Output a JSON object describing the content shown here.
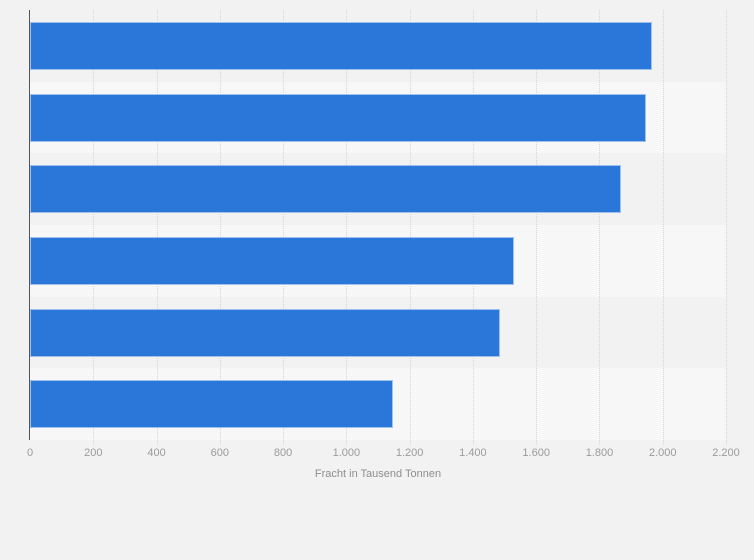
{
  "chart_data": {
    "type": "bar",
    "orientation": "horizontal",
    "title": "",
    "xlabel": "Fracht in Tausend Tonnen",
    "ylabel": "",
    "values": [
      1965,
      1948,
      1868,
      1530,
      1486,
      1146
    ],
    "xlim": [
      0,
      2200
    ],
    "x_ticks": [
      0,
      200,
      400,
      600,
      800,
      1000,
      1200,
      1400,
      1600,
      1800,
      2000,
      2200
    ],
    "x_tick_labels": [
      "0",
      "200",
      "400",
      "600",
      "800",
      "1.000",
      "1.200",
      "1.400",
      "1.600",
      "1.800",
      "2.000",
      "2.200"
    ],
    "grid": true,
    "gridline_style": "dotted",
    "legend": false,
    "category_labels_visible": false
  },
  "colors": {
    "page_background": "#f2f2f2",
    "band_odd": "#f2f2f2",
    "band_even": "#f7f7f7",
    "bar": "#2b77d9",
    "axis_line": "#555555",
    "gridline": "#d5d5d5",
    "tick_label": "#9b9b9b",
    "axis_title": "#8e8e8e"
  }
}
